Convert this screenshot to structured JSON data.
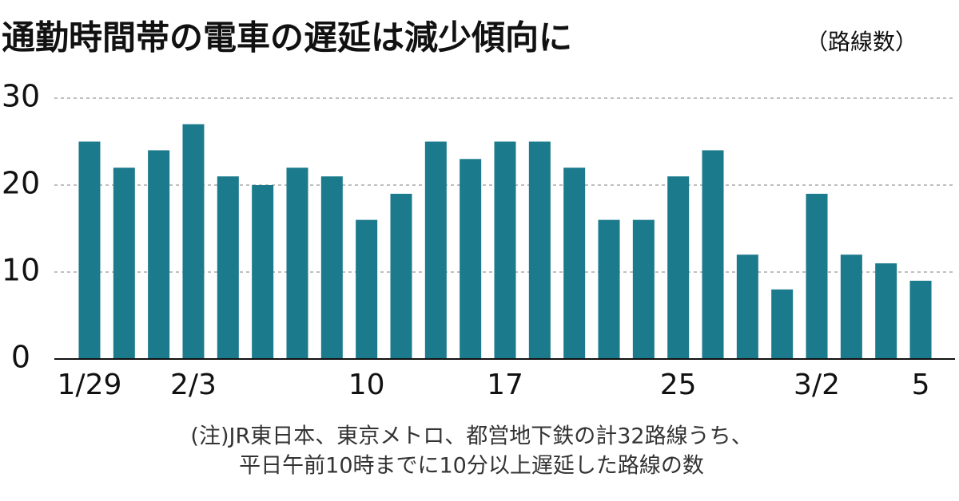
{
  "chart_data": {
    "type": "bar",
    "title": "通勤時間帯の電車の遅延は減少傾向に",
    "subtitle": "（路線数）",
    "categories": [
      "1/29",
      null,
      null,
      "2/3",
      null,
      null,
      null,
      null,
      "10",
      null,
      null,
      null,
      "17",
      null,
      null,
      null,
      null,
      "25",
      null,
      null,
      null,
      "3/2",
      null,
      null,
      "5"
    ],
    "values": [
      25,
      22,
      24,
      27,
      21,
      20,
      22,
      21,
      16,
      19,
      25,
      23,
      25,
      25,
      22,
      16,
      16,
      21,
      24,
      12,
      8,
      19,
      12,
      11,
      9
    ],
    "color": "#1b7a8c",
    "ylim": [
      0,
      30
    ],
    "yticks": [
      0,
      10,
      20,
      30
    ],
    "grid": true,
    "note": [
      "(注)JR東日本、東京メトロ、都営地下鉄の計32路線うち、",
      "平日午前10時までに10分以上遅延した路線の数"
    ]
  }
}
